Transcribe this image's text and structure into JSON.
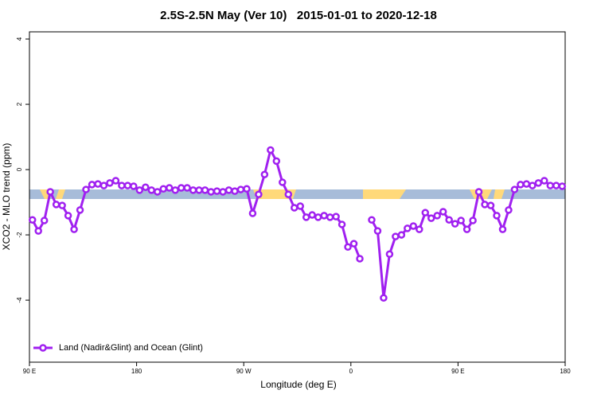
{
  "chart_data": {
    "type": "line",
    "title": "2.5S-2.5N May (Ver 10)   2015-01-01 to 2020-12-18",
    "x_label": "Longitude (deg E)",
    "y_label": "XCO2 - MLO trend (ppm)",
    "xlim": [
      90,
      540
    ],
    "xticks": [
      {
        "value": 90,
        "label": "90 E"
      },
      180,
      {
        "value": 270,
        "label": "90 W"
      },
      {
        "value": 360,
        "label": "0"
      },
      {
        "value": 450,
        "label": "90 E"
      },
      {
        "value": 540,
        "label": "180"
      }
    ],
    "ylim": [
      -5.9,
      4.22
    ],
    "yticks": [
      4,
      2,
      0,
      -2,
      -4
    ],
    "legend": "bottom-left",
    "x": [
      92.5,
      97.5,
      102.5,
      107.5,
      112.5,
      117.5,
      122.5,
      127.5,
      132.5,
      137.5,
      142.5,
      147.5,
      152.5,
      157.5,
      162.5,
      167.5,
      172.5,
      177.5,
      182.5,
      187.5,
      192.5,
      197.5,
      202.5,
      207.5,
      212.5,
      217.5,
      222.5,
      227.5,
      232.5,
      237.5,
      242.5,
      247.5,
      252.5,
      257.5,
      262.5,
      267.5,
      272.5,
      277.5,
      282.5,
      287.5,
      292.5,
      297.5,
      302.5,
      307.5,
      312.5,
      317.5,
      322.5,
      327.5,
      332.5,
      337.5,
      342.5,
      347.5,
      352.5,
      357.5,
      362.5,
      367.5,
      372.5,
      377.5,
      382.5,
      387.5,
      392.5,
      397.5,
      402.5,
      407.5,
      412.5,
      417.5,
      422.5,
      427.5,
      432.5,
      437.5,
      442.5,
      447.5,
      452.5,
      457.5,
      462.5,
      467.5,
      472.5,
      477.5,
      482.5,
      487.5,
      492.5,
      497.5,
      502.5,
      507.5,
      512.5,
      517.5,
      522.5,
      527.5,
      532.5,
      537.5
    ],
    "series": [
      {
        "name": "Land (Nadir&Glint) and Ocean (Glint)",
        "color": "#a020f0",
        "values": [
          -1.54,
          -1.88,
          -1.56,
          -0.68,
          -1.07,
          -1.1,
          -1.41,
          -1.83,
          -1.24,
          -0.61,
          -0.46,
          -0.44,
          -0.49,
          -0.41,
          -0.34,
          -0.49,
          -0.49,
          -0.51,
          -0.63,
          -0.54,
          -0.63,
          -0.68,
          -0.59,
          -0.56,
          -0.63,
          -0.56,
          -0.56,
          -0.63,
          -0.63,
          -0.63,
          -0.68,
          -0.66,
          -0.68,
          -0.63,
          -0.66,
          -0.61,
          -0.59,
          -1.34,
          -0.76,
          -0.15,
          0.6,
          0.26,
          -0.39,
          -0.76,
          -1.17,
          -1.12,
          -1.46,
          -1.39,
          -1.46,
          -1.41,
          -1.46,
          -1.44,
          -1.68,
          -2.37,
          -2.27,
          -2.73,
          null,
          -1.54,
          -1.88,
          -3.93,
          -2.59,
          -2.05,
          -2.0,
          -1.8,
          -1.73,
          -1.83,
          -1.32,
          -1.49,
          -1.41,
          -1.29,
          -1.54,
          -1.66,
          -1.56,
          -1.83,
          -1.56,
          -0.68,
          -1.07,
          -1.1,
          -1.41,
          -1.83,
          -1.24,
          -0.61,
          -0.46,
          -0.44,
          -0.49,
          -0.41,
          -0.34,
          -0.49,
          -0.49,
          -0.51
        ]
      }
    ]
  }
}
